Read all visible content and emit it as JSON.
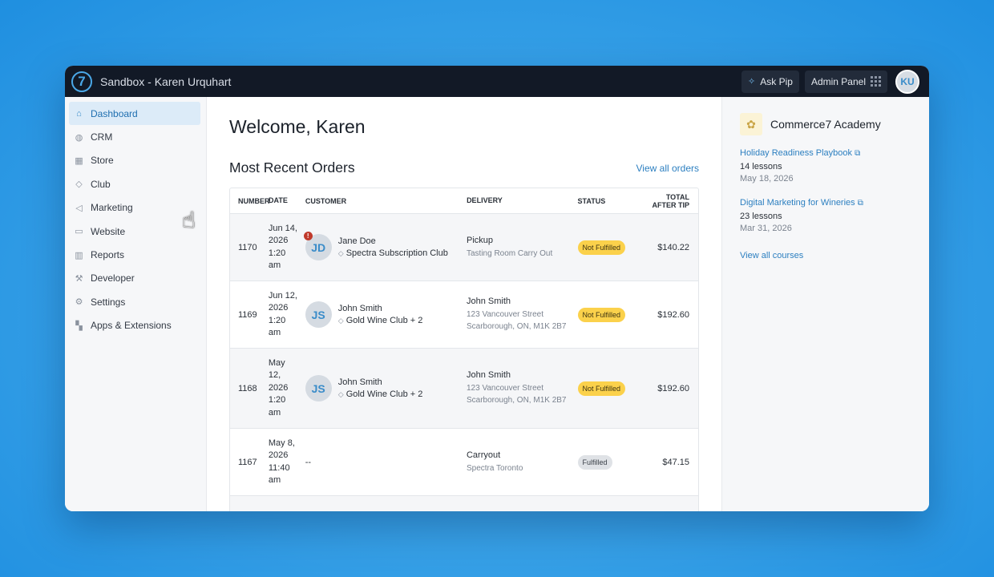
{
  "topbar": {
    "logo": "7",
    "title": "Sandbox - Karen Urquhart",
    "ask_pip": "Ask Pip",
    "admin_panel": "Admin Panel",
    "user_initials": "KU"
  },
  "sidebar": {
    "items": [
      {
        "label": "Dashboard",
        "icon": "home-icon",
        "glyph": "⌂"
      },
      {
        "label": "CRM",
        "icon": "globe-icon",
        "glyph": "◍"
      },
      {
        "label": "Store",
        "icon": "store-icon",
        "glyph": "▦"
      },
      {
        "label": "Club",
        "icon": "diamond-icon",
        "glyph": "◇"
      },
      {
        "label": "Marketing",
        "icon": "megaphone-icon",
        "glyph": "◁"
      },
      {
        "label": "Website",
        "icon": "monitor-icon",
        "glyph": "▭"
      },
      {
        "label": "Reports",
        "icon": "bar-chart-icon",
        "glyph": "▥"
      },
      {
        "label": "Developer",
        "icon": "wrench-icon",
        "glyph": "⚒"
      },
      {
        "label": "Settings",
        "icon": "gear-icon",
        "glyph": "⚙"
      },
      {
        "label": "Apps & Extensions",
        "icon": "apps-icon",
        "glyph": "▚"
      }
    ]
  },
  "main": {
    "welcome": "Welcome, Karen",
    "section_title": "Most Recent Orders",
    "view_all": "View all orders",
    "columns": {
      "number": "NUMBER",
      "date": "DATE",
      "customer": "CUSTOMER",
      "delivery": "DELIVERY",
      "status": "STATUS",
      "total_l1": "TOTAL",
      "total_l2": "AFTER TIP"
    },
    "orders": [
      {
        "number": "1170",
        "date": [
          "Jun 14,",
          "2026",
          "1:20",
          "am"
        ],
        "initials": "JD",
        "name": "Jane Doe",
        "club": "Spectra Subscription Club",
        "delivery": "Pickup",
        "delivery_sub": [
          "Tasting Room Carry Out"
        ],
        "status": "Not Fulfilled",
        "total": "$140.22"
      },
      {
        "number": "1169",
        "date": [
          "Jun 12,",
          "2026",
          "1:20",
          "am"
        ],
        "initials": "JS",
        "name": "John Smith",
        "club": "Gold Wine Club + 2",
        "delivery": "John Smith",
        "delivery_sub": [
          "123 Vancouver Street",
          "Scarborough, ON, M1K 2B7"
        ],
        "status": "Not Fulfilled",
        "total": "$192.60"
      },
      {
        "number": "1168",
        "date": [
          "May",
          "12,",
          "2026",
          "1:20",
          "am"
        ],
        "initials": "JS",
        "name": "John Smith",
        "club": "Gold Wine Club + 2",
        "delivery": "John Smith",
        "delivery_sub": [
          "123 Vancouver Street",
          "Scarborough, ON, M1K 2B7"
        ],
        "status": "Not Fulfilled",
        "total": "$192.60"
      },
      {
        "number": "1167",
        "date": [
          "May 8,",
          "2026",
          "11:40",
          "am"
        ],
        "customer_placeholder": "--",
        "delivery": "Carryout",
        "delivery_sub": [
          "Spectra Toronto"
        ],
        "status": "Fulfilled",
        "total": "$47.15"
      }
    ]
  },
  "academy": {
    "title": "Commerce7 Academy",
    "courses": [
      {
        "title": "Holiday Readiness Playbook",
        "lessons": "14 lessons",
        "date": "May 18, 2026"
      },
      {
        "title": "Digital Marketing for Wineries",
        "lessons": "23 lessons",
        "date": "Mar 31, 2026"
      }
    ],
    "view_all": "View all courses"
  }
}
